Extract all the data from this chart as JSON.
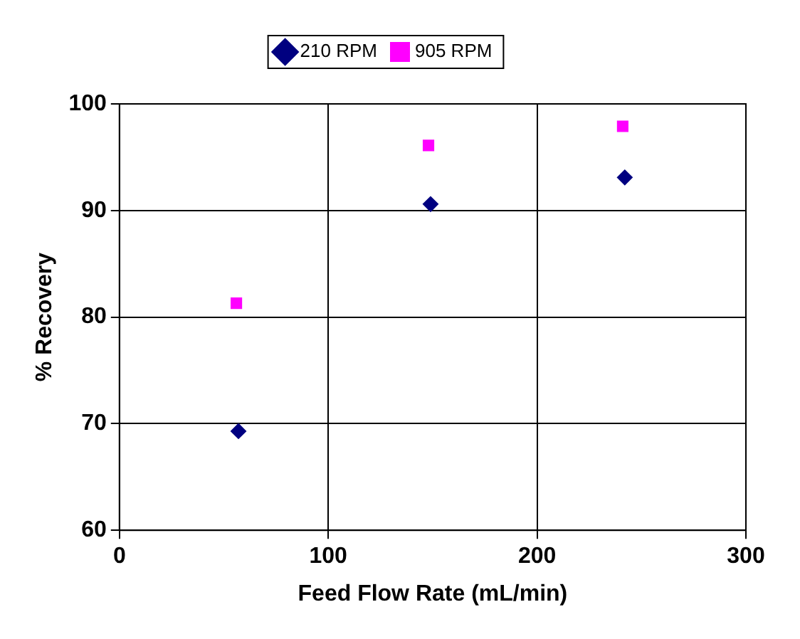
{
  "chart_data": {
    "type": "scatter",
    "xlabel": "Feed Flow Rate (mL/min)",
    "ylabel": "% Recovery",
    "series": [
      {
        "name": "210 RPM",
        "color": "#000080",
        "marker": "diamond",
        "x": [
          57,
          149,
          242
        ],
        "values": [
          69.3,
          90.6,
          93.1
        ]
      },
      {
        "name": "905 RPM",
        "color": "#ff00ff",
        "marker": "square",
        "x": [
          56,
          148,
          241
        ],
        "values": [
          81.3,
          96.1,
          97.9
        ]
      }
    ],
    "xlim": [
      0,
      300
    ],
    "xticks": [
      0,
      100,
      200,
      300
    ],
    "ylim": [
      60,
      100
    ],
    "yticks": [
      60,
      70,
      80,
      90,
      100
    ],
    "grid": true,
    "legend": "top"
  }
}
